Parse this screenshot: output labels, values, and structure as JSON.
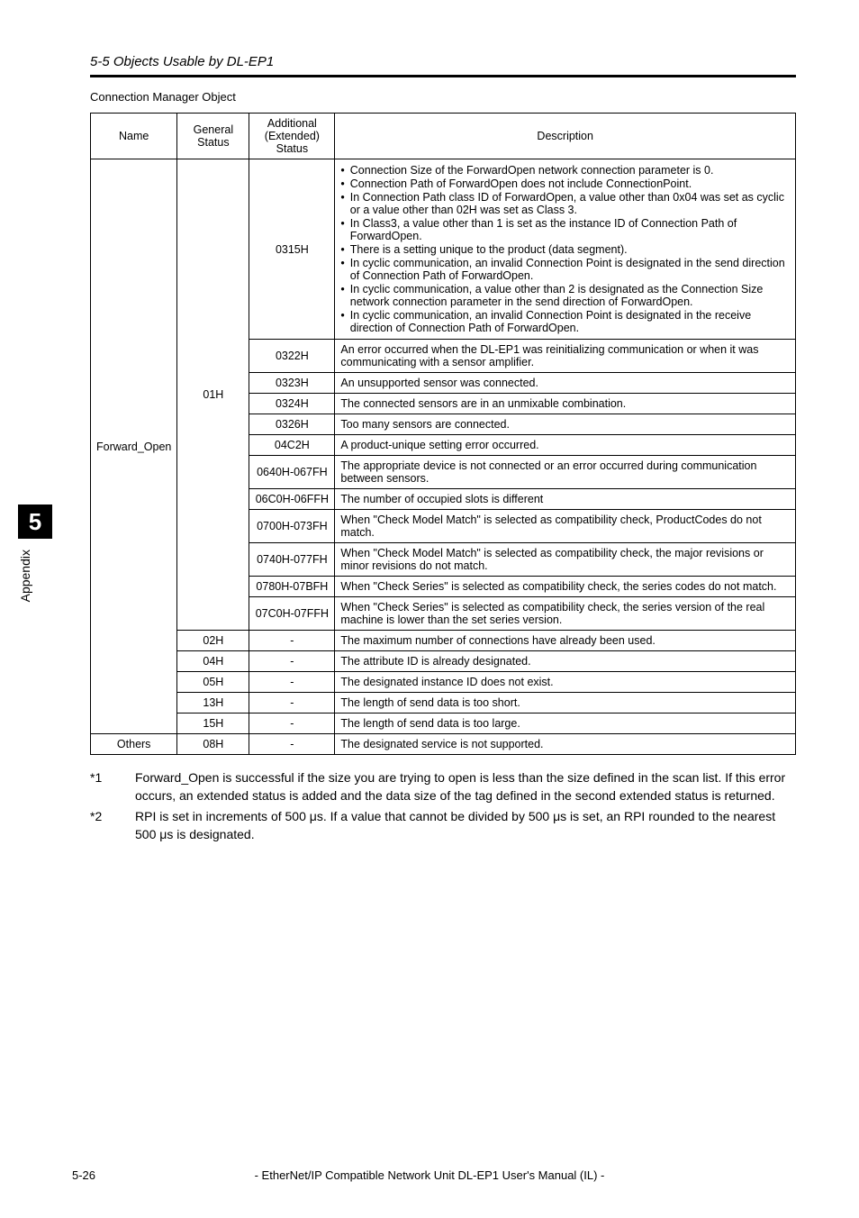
{
  "page": {
    "section_title": "5-5 Objects Usable by DL-EP1",
    "subtitle": "Connection Manager Object",
    "side_tab_number": "5",
    "side_label": "Appendix",
    "page_number": "5-26",
    "footer": "- EtherNet/IP Compatible Network Unit DL-EP1 User's Manual (IL) -"
  },
  "table": {
    "headers": {
      "name": "Name",
      "general": "General Status",
      "additional": "Additional (Extended) Status",
      "description": "Description"
    },
    "forward_open_label": "Forward_Open",
    "others_label": "Others",
    "gen_01H": "01H",
    "gen_02H": "02H",
    "gen_04H": "04H",
    "gen_05H": "05H",
    "gen_13H": "13H",
    "gen_15H": "15H",
    "gen_08H": "08H",
    "rows_01H": [
      {
        "add": "0315H",
        "desc_type": "bullets",
        "bullets": [
          "Connection Size of the ForwardOpen network connection parameter is 0.",
          "Connection Path of ForwardOpen does not include ConnectionPoint.",
          "In Connection Path class ID of ForwardOpen, a value other than 0x04 was set as cyclic or a value other than 02H was set as Class 3.",
          "In Class3, a value other than 1 is set as the instance ID of Connection Path of ForwardOpen.",
          "There is a setting unique to the product (data segment).",
          "In cyclic communication, an invalid Connection Point is designated in the send direction of Connection Path of ForwardOpen.",
          "In cyclic communication, a value other than 2 is designated as the Connection Size network connection parameter in the send direction of ForwardOpen.",
          "In cyclic communication, an invalid Connection Point is designated in the receive direction of Connection Path of ForwardOpen."
        ]
      },
      {
        "add": "0322H",
        "desc": "An error occurred when the DL-EP1 was reinitializing communication or when it was communicating with a sensor amplifier."
      },
      {
        "add": "0323H",
        "desc": "An unsupported sensor was connected."
      },
      {
        "add": "0324H",
        "desc": "The connected sensors are in an unmixable combination."
      },
      {
        "add": "0326H",
        "desc": "Too many sensors are connected."
      },
      {
        "add": "04C2H",
        "desc": "A product-unique setting error occurred."
      },
      {
        "add": "0640H-067FH",
        "desc": "The appropriate device is not connected or an error occurred during communication between sensors."
      },
      {
        "add": "06C0H-06FFH",
        "desc": "The number of occupied slots is different"
      },
      {
        "add": "0700H-073FH",
        "desc": "When \"Check Model Match\" is selected as compatibility check, ProductCodes do not match."
      },
      {
        "add": "0740H-077FH",
        "desc": "When \"Check Model Match\" is selected as compatibility check, the major revisions or minor revisions do not match."
      },
      {
        "add": "0780H-07BFH",
        "desc": "When \"Check Series\" is selected as compatibility check, the series codes do not match."
      },
      {
        "add": "07C0H-07FFH",
        "desc": "When \"Check Series\" is selected as compatibility check, the series version of the real machine is lower than the set series version."
      }
    ],
    "rows_other": [
      {
        "gen": "02H",
        "add": "-",
        "desc": "The maximum number of connections have already been used."
      },
      {
        "gen": "04H",
        "add": "-",
        "desc": "The attribute ID is already designated."
      },
      {
        "gen": "05H",
        "add": "-",
        "desc": "The designated instance ID does not exist."
      },
      {
        "gen": "13H",
        "add": "-",
        "desc": "The length of send data is too short."
      },
      {
        "gen": "15H",
        "add": "-",
        "desc": "The length of send data is too large."
      }
    ],
    "row_others": {
      "gen": "08H",
      "add": "-",
      "desc": "The designated service is not supported."
    }
  },
  "footnotes": [
    {
      "tag": "*1",
      "body": "Forward_Open is successful if the size you are trying to open is less than the size defined in the scan list. If this error occurs, an extended status is added and the data size of the tag defined in the second extended status is returned."
    },
    {
      "tag": "*2",
      "body": "RPI is set in increments of 500 μs. If a value that cannot be divided by 500 μs is set, an RPI rounded to the nearest 500 μs is designated."
    }
  ]
}
